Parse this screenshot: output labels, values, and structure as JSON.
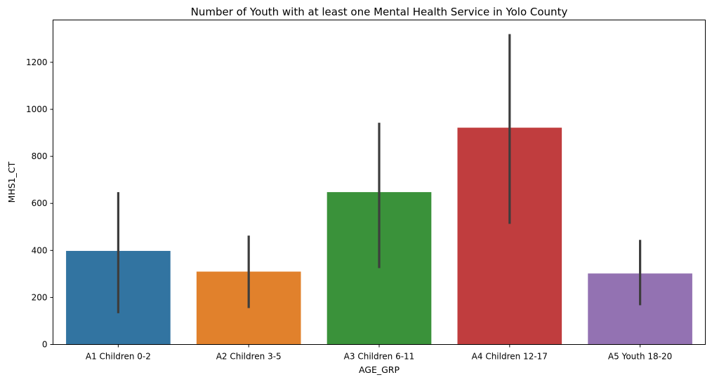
{
  "chart_data": {
    "type": "bar",
    "title": "Number of Youth with at least one Mental Health Service in Yolo County",
    "xlabel": "AGE_GRP",
    "ylabel": "MHS1_CT",
    "ylim": [
      0,
      1380
    ],
    "yticks": [
      0,
      200,
      400,
      600,
      800,
      1000,
      1200
    ],
    "grid": false,
    "categories": [
      "A1 Children 0-2",
      "A2 Children 3-5",
      "A3 Children 6-11",
      "A4 Children 12-17",
      "A5 Youth 18-20"
    ],
    "values": [
      398,
      310,
      648,
      922,
      302
    ],
    "error_low": [
      133,
      155,
      325,
      513,
      167
    ],
    "error_high": [
      648,
      463,
      943,
      1320,
      445
    ],
    "colors": [
      "#3274a1",
      "#e1812c",
      "#3a923a",
      "#c03d3e",
      "#9372b2"
    ]
  }
}
